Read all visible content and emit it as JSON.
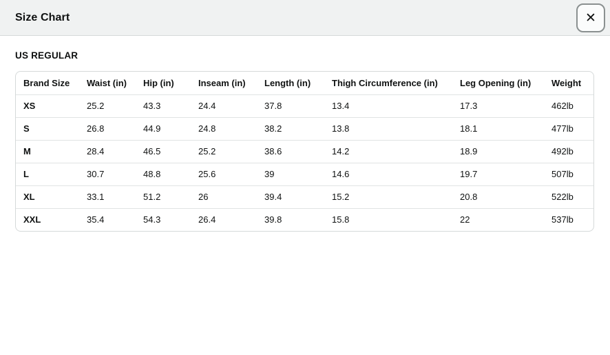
{
  "modal": {
    "title": "Size Chart",
    "close_icon": "✕"
  },
  "section": {
    "heading": "US REGULAR"
  },
  "size_table": {
    "columns": [
      "Brand Size",
      "Waist (in)",
      "Hip (in)",
      "Inseam (in)",
      "Length (in)",
      "Thigh Circumference (in)",
      "Leg Opening (in)",
      "Weight"
    ],
    "rows": [
      [
        "XS",
        "25.2",
        "43.3",
        "24.4",
        "37.8",
        "13.4",
        "17.3",
        "462lb"
      ],
      [
        "S",
        "26.8",
        "44.9",
        "24.8",
        "38.2",
        "13.8",
        "18.1",
        "477lb"
      ],
      [
        "M",
        "28.4",
        "46.5",
        "25.2",
        "38.6",
        "14.2",
        "18.9",
        "492lb"
      ],
      [
        "L",
        "30.7",
        "48.8",
        "25.6",
        "39",
        "14.6",
        "19.7",
        "507lb"
      ],
      [
        "XL",
        "33.1",
        "51.2",
        "26",
        "39.4",
        "15.2",
        "20.8",
        "522lb"
      ],
      [
        "XXL",
        "35.4",
        "54.3",
        "26.4",
        "39.8",
        "15.8",
        "22",
        "537lb"
      ]
    ]
  },
  "colors": {
    "header_bg": "#f0f2f2",
    "border": "#d5d9d9",
    "row_border": "#e0e3e3",
    "text": "#0f1111"
  }
}
